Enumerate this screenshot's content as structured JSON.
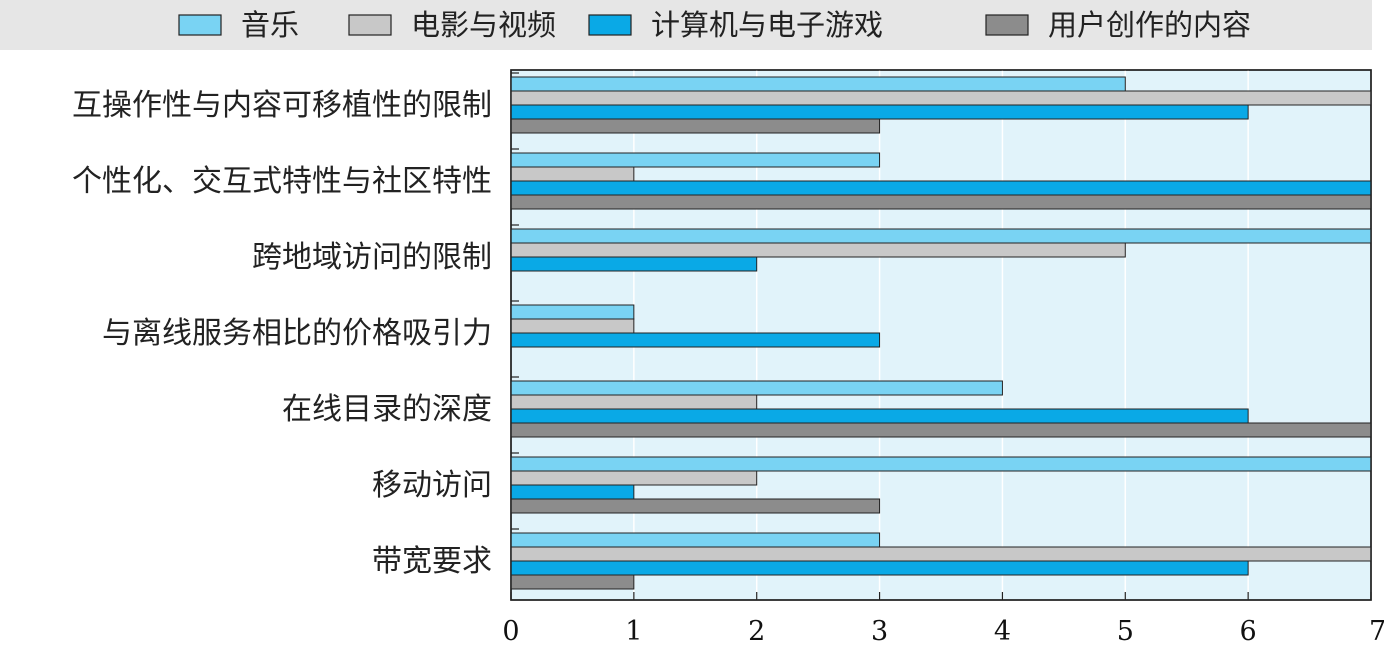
{
  "chart_data": {
    "type": "bar",
    "orientation": "horizontal",
    "categories": [
      "互操作性与内容可移植性的限制",
      "个性化、交互式特性与社区特性",
      "跨地域访问的限制",
      "与离线服务相比的价格吸引力",
      "在线目录的深度",
      "移动访问",
      "带宽要求"
    ],
    "series": [
      {
        "name": "音乐",
        "color": "#79d3f3",
        "values": [
          5,
          3,
          7,
          1,
          4,
          7,
          3
        ]
      },
      {
        "name": "电影与视频",
        "color": "#c8c8c8",
        "values": [
          7,
          1,
          5,
          1,
          2,
          2,
          7
        ]
      },
      {
        "name": "计算机与电子游戏",
        "color": "#0aa9e6",
        "values": [
          6,
          7,
          2,
          3,
          6,
          1,
          6
        ]
      },
      {
        "name": "用户创作的内容",
        "color": "#8c8c8c",
        "values": [
          3,
          7,
          0,
          0,
          7,
          3,
          1
        ]
      }
    ],
    "x_ticks": [
      0,
      1,
      2,
      3,
      4,
      5,
      6,
      7
    ],
    "xlim": [
      0,
      7
    ],
    "legend_position": "top",
    "grid": true,
    "plot_background": "#e1f3fa",
    "legend_background": "#e6e6e6"
  }
}
